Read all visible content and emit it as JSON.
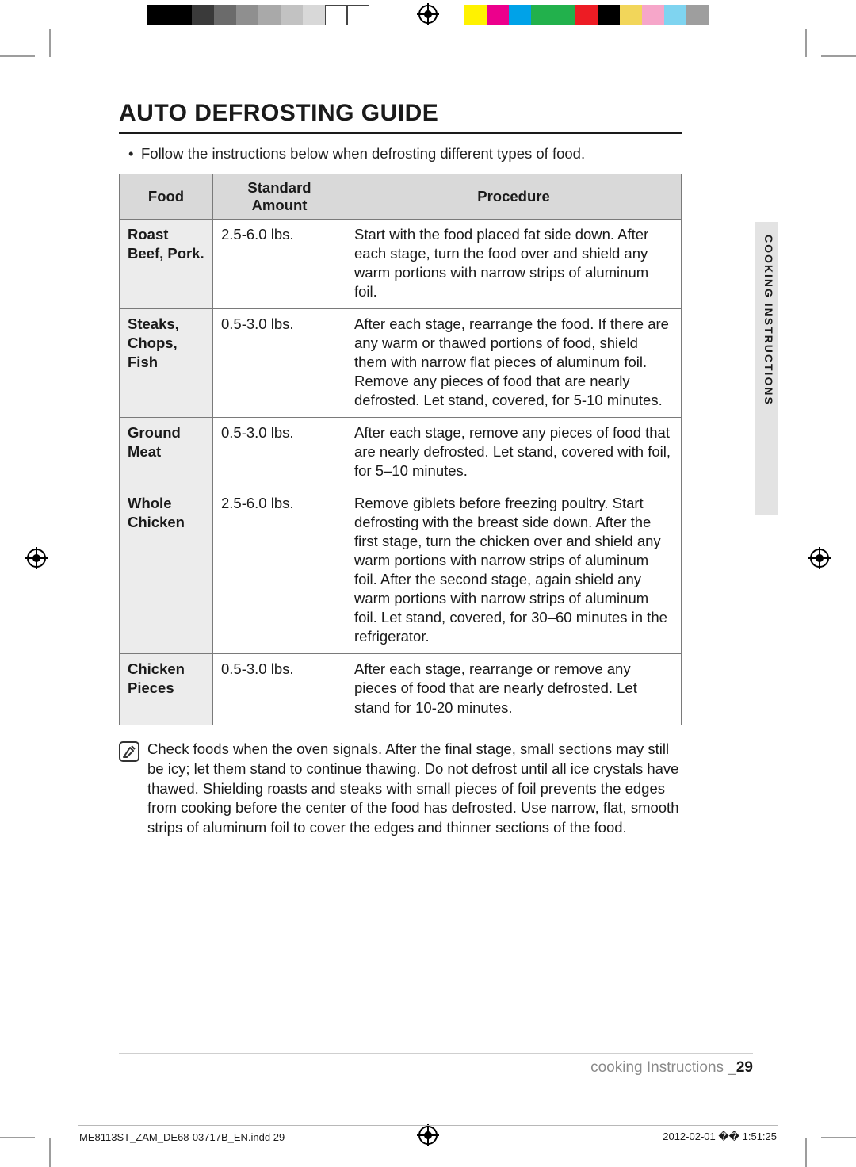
{
  "colorBar": {
    "left": [
      "#000000",
      "#000000",
      "#3a3a3a",
      "#6b6b6b",
      "#8f8f8f",
      "#a9a9a9",
      "#c2c2c2",
      "#d8d8d8",
      "#ffffff",
      "#ffffff"
    ],
    "right": [
      "#fff200",
      "#ec008c",
      "#00a2e8",
      "#22b14c",
      "#22b14c",
      "#ed1c24",
      "#000000",
      "#f2d65a",
      "#f6a6c9",
      "#7fd4f0",
      "#9e9e9e"
    ]
  },
  "title": "AUTO DEFROSTING GUIDE",
  "intro": "Follow the instructions below when defrosting different types of food.",
  "table": {
    "headers": [
      "Food",
      "Standard Amount",
      "Procedure"
    ],
    "rows": [
      {
        "food": "Roast Beef, Pork.",
        "amount": "2.5-6.0 lbs.",
        "procedure": "Start with the food placed fat side down. After each stage, turn the food over and shield any warm portions with narrow strips of aluminum foil."
      },
      {
        "food": "Steaks, Chops, Fish",
        "amount": "0.5-3.0 lbs.",
        "procedure": "After each stage, rearrange the food. If there are any warm or thawed portions of food, shield them with narrow flat pieces of aluminum foil. Remove any pieces of food that are nearly defrosted. Let stand, covered, for 5-10 minutes."
      },
      {
        "food": "Ground Meat",
        "amount": "0.5-3.0 lbs.",
        "procedure": "After each stage, remove any pieces of food that are nearly defrosted. Let stand, covered with foil, for 5–10 minutes."
      },
      {
        "food": "Whole Chicken",
        "amount": "2.5-6.0 lbs.",
        "procedure": "Remove giblets before freezing poultry. Start defrosting with the breast side down. After the first stage, turn the chicken over and shield any warm portions with narrow strips of aluminum foil. After the second stage, again shield any warm portions with narrow strips of aluminum foil. Let stand, covered, for 30–60 minutes in the refrigerator."
      },
      {
        "food": "Chicken Pieces",
        "amount": "0.5-3.0 lbs.",
        "procedure": "After each stage, rearrange or remove any pieces of food that are nearly defrosted. Let stand for 10-20 minutes."
      }
    ]
  },
  "note": "Check foods when the oven signals. After the final stage, small sections may still be icy; let them stand to continue thawing. Do not defrost until all ice crystals have thawed. Shielding roasts and steaks with small pieces of foil prevents the edges from cooking before the center of the food has defrosted. Use narrow, flat, smooth strips of aluminum foil to cover the edges and thinner sections of the food.",
  "sideTab": "COOKING INSTRUCTIONS",
  "footer": {
    "section": "cooking Instructions _",
    "page": "29"
  },
  "printMeta": {
    "file": "ME8113ST_ZAM_DE68-03717B_EN.indd   29",
    "timestamp": "2012-02-01   �� 1:51:25"
  }
}
